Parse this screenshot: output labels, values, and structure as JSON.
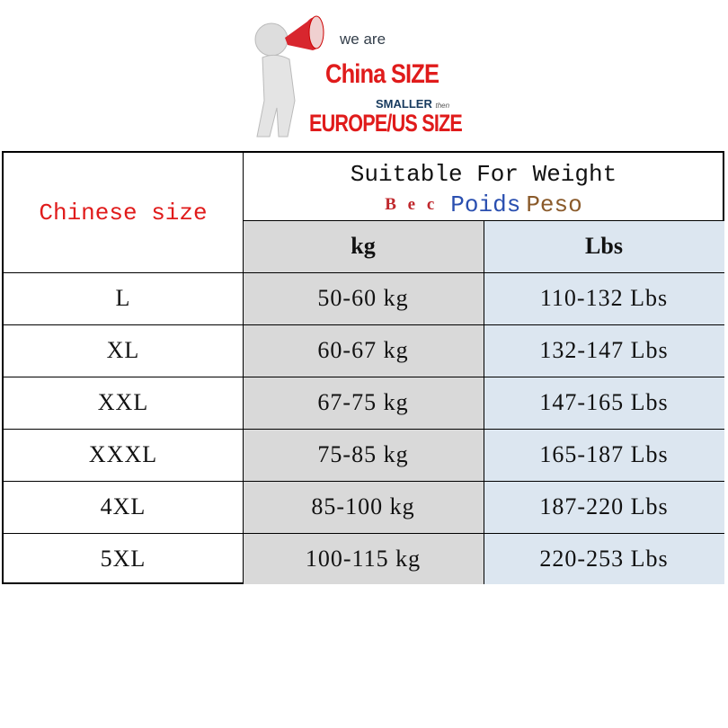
{
  "banner": {
    "line1": "we are",
    "line2": "China SIZE",
    "line3": "SMALLER",
    "line3_small": "then",
    "line4": "EUROPE/US SIZE"
  },
  "table": {
    "size_header": "Chinese size",
    "weight_header": "Suitable For Weight",
    "translations": {
      "ru": "В е с",
      "fr": "Poids",
      "es": "Peso"
    },
    "kg_header": "kg",
    "lbs_header": "Lbs",
    "rows": [
      {
        "size": "L",
        "kg": "50-60 kg",
        "lbs": "110-132 Lbs"
      },
      {
        "size": "XL",
        "kg": "60-67 kg",
        "lbs": "132-147 Lbs"
      },
      {
        "size": "XXL",
        "kg": "67-75 kg",
        "lbs": "147-165 Lbs"
      },
      {
        "size": "XXXL",
        "kg": "75-85 kg",
        "lbs": "165-187 Lbs"
      },
      {
        "size": "4XL",
        "kg": "85-100 kg",
        "lbs": "187-220 Lbs"
      },
      {
        "size": "5XL",
        "kg": "100-115 kg",
        "lbs": "220-253 Lbs"
      }
    ]
  },
  "colors": {
    "red": "#e01b1b",
    "blue": "#2a4fb0",
    "brown": "#8a5a2a",
    "kg_bg": "#d9d9d9",
    "lbs_bg": "#dce6f0"
  }
}
